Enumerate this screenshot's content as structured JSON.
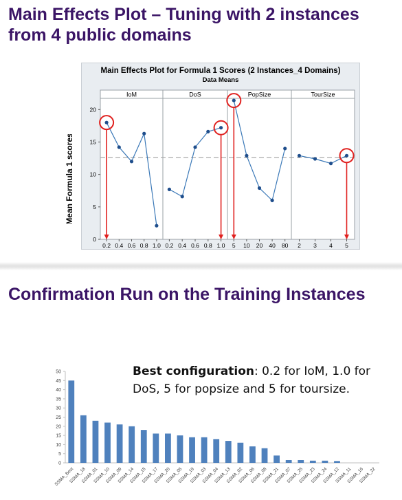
{
  "slide1": {
    "title": "Main Effects Plot – Tuning with 2 instances from 4 public domains"
  },
  "slide2": {
    "title": "Confirmation Run on the Training Instances",
    "note_bold": "Best configuration",
    "note_rest": ": 0.2 for IoM, 1.0 for DoS, 5 for popsize and 5 for toursize."
  },
  "colors": {
    "title": "#3b1566",
    "line": "#3a78b7",
    "marker": "#1f4e8c",
    "highlight": "#e0211f",
    "bar": "#4f81bd"
  },
  "chart_data": [
    {
      "type": "line",
      "title": "Main Effects Plot for Formula 1 Scores (2 Instances_4 Domains)",
      "subtitle": "Data Means",
      "ylabel": "Mean Formula 1 scores",
      "ylim": [
        0,
        23
      ],
      "yticks": [
        0,
        5,
        10,
        15,
        20
      ],
      "mean_line": 12.6,
      "grid": false,
      "panels": [
        {
          "name": "IoM",
          "x": [
            "0.2",
            "0.4",
            "0.6",
            "0.8",
            "1.0"
          ],
          "values": [
            18.0,
            14.2,
            12.0,
            16.3,
            2.1
          ],
          "highlight_index": 0
        },
        {
          "name": "DoS",
          "x": [
            "0.2",
            "0.4",
            "0.6",
            "0.8",
            "1.0"
          ],
          "values": [
            7.7,
            6.6,
            14.2,
            16.6,
            17.2
          ],
          "highlight_index": 4
        },
        {
          "name": "PopSize",
          "x": [
            "5",
            "10",
            "20",
            "40",
            "80"
          ],
          "values": [
            21.4,
            12.9,
            7.9,
            6.0,
            14.0
          ],
          "highlight_index": 0
        },
        {
          "name": "TourSize",
          "x": [
            "2",
            "3",
            "4",
            "5"
          ],
          "values": [
            12.9,
            12.4,
            11.7,
            12.9
          ],
          "highlight_index": 3
        }
      ]
    },
    {
      "type": "bar",
      "categories": [
        "SSMA_Best",
        "SSMA_18",
        "SSMA_01",
        "SSMA_10",
        "SSMA_09",
        "SSMA_14",
        "SSMA_15",
        "SSMA_17",
        "SSMA_20",
        "SSMA_05",
        "SSMA_19",
        "SSMA_03",
        "SSMA_04",
        "SSMA_13",
        "SSMA_02",
        "SSMA_06",
        "SSMA_08",
        "SSMA_21",
        "SSMA_07",
        "SSMA_25",
        "SSMA_23",
        "SSMA_24",
        "SSMA_12",
        "SSMA_11",
        "SSMA_16",
        "SSMA_22"
      ],
      "values": [
        45,
        26,
        23,
        22,
        21,
        20,
        18,
        16,
        16,
        15,
        14,
        14,
        13,
        12,
        11,
        9,
        8,
        4,
        1.5,
        1.5,
        1.2,
        1.2,
        1,
        0,
        0,
        0
      ],
      "ylim": [
        0,
        50
      ],
      "yticks": [
        0,
        5,
        10,
        15,
        20,
        25,
        30,
        35,
        40,
        45,
        50
      ],
      "grid": false
    }
  ]
}
